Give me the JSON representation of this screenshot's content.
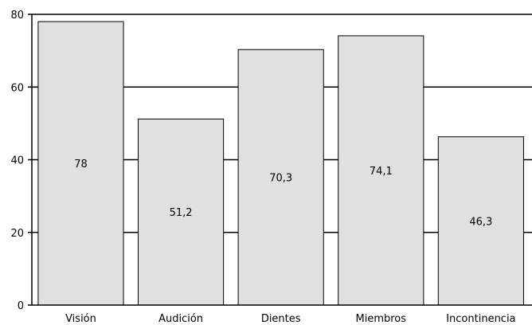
{
  "chart_data": {
    "type": "bar",
    "categories": [
      "Visión",
      "Audición",
      "Dientes",
      "Miembros",
      "Incontinencia"
    ],
    "values": [
      78,
      51.2,
      70.3,
      74.1,
      46.3
    ],
    "value_labels": [
      "78",
      "51,2",
      "70,3",
      "74,1",
      "46,3"
    ],
    "ylim": [
      0,
      80
    ],
    "yticks": [
      0,
      20,
      40,
      60,
      80
    ],
    "ytick_labels": [
      "0",
      "20",
      "40",
      "60",
      "80"
    ],
    "grid": true,
    "title": "",
    "xlabel": "",
    "ylabel": "",
    "colors": {
      "bar_fill": "#e0e0e0",
      "bar_stroke": "#000000",
      "grid": "#000000",
      "axis": "#000000"
    }
  }
}
